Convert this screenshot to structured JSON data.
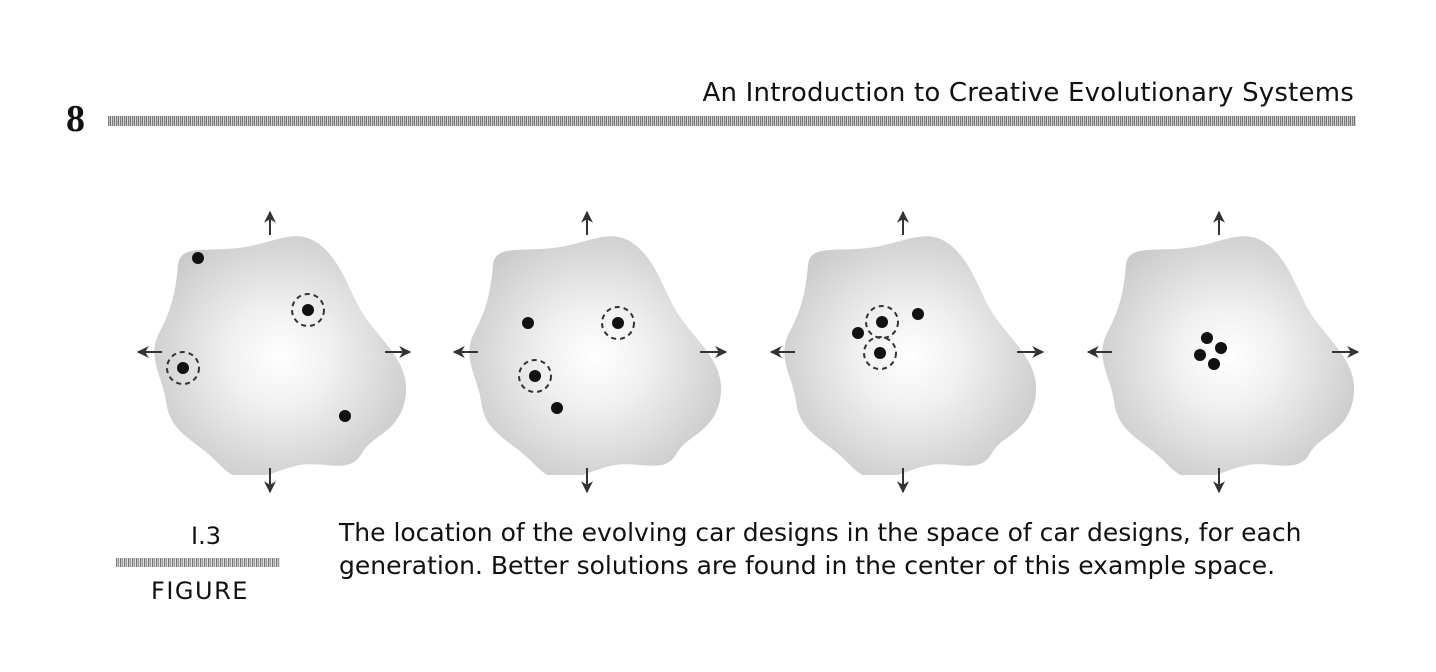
{
  "header": {
    "page_number": "8",
    "running_head": "An Introduction to Creative Evolutionary Systems"
  },
  "figure": {
    "number": "I.3",
    "label": "FIGURE",
    "caption_line1": "The location of the evolving car designs in the space of car designs, for each",
    "caption_line2": "generation. Better solutions are found in the center of this example space."
  },
  "colors": {
    "blob_edge": "#c9c9c9",
    "blob_center": "#ffffff",
    "dot": "#111111"
  }
}
